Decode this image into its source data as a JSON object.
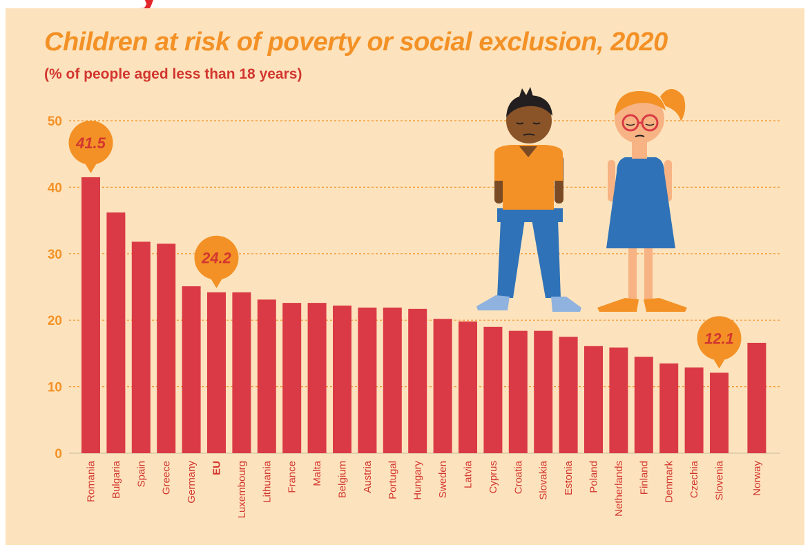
{
  "headline": "y",
  "colors": {
    "background": "#fde3bd",
    "bar": "#d93a45",
    "accent": "#f39126",
    "label": "#d2362f"
  },
  "illustration": {
    "icons": [
      "boy-icon",
      "girl-icon"
    ]
  },
  "chart_data": {
    "type": "bar",
    "title": "Children at risk of poverty or social exclusion, 2020",
    "subtitle": "(% of people aged less than 18 years)",
    "xlabel": "",
    "ylabel": "",
    "ylim": [
      0,
      50
    ],
    "yticks": [
      0,
      10,
      20,
      30,
      40,
      50
    ],
    "grid": true,
    "categories": [
      "Romania",
      "Bulgaria",
      "Spain",
      "Greece",
      "Germany",
      "EU",
      "Luxembourg",
      "Lithuania",
      "France",
      "Malta",
      "Belgium",
      "Austria",
      "Portugal",
      "Hungary",
      "Sweden",
      "Latvia",
      "Cyprus",
      "Croatia",
      "Slovakia",
      "Estonia",
      "Poland",
      "Netherlands",
      "Finland",
      "Denmark",
      "Czechia",
      "Slovenia",
      "Norway"
    ],
    "values": [
      41.5,
      36.2,
      31.8,
      31.5,
      25.1,
      24.2,
      24.2,
      23.1,
      22.6,
      22.6,
      22.2,
      21.9,
      21.9,
      21.7,
      20.2,
      19.8,
      19.0,
      18.4,
      18.4,
      17.5,
      16.1,
      15.9,
      14.5,
      13.5,
      12.9,
      12.1,
      16.6
    ],
    "bold_categories": [
      "EU"
    ],
    "annotations": [
      {
        "category": "Romania",
        "label": "41.5"
      },
      {
        "category": "EU",
        "label": "24.2"
      },
      {
        "category": "Slovenia",
        "label": "12.1"
      }
    ]
  }
}
